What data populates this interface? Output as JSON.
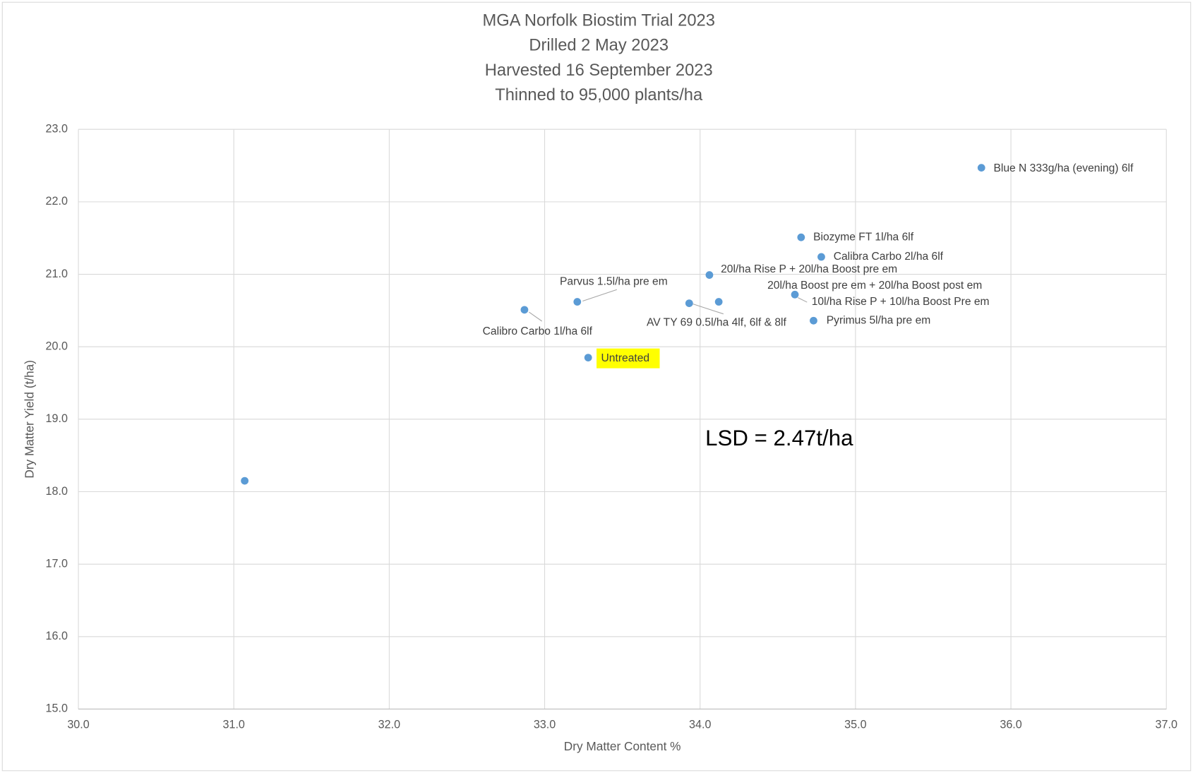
{
  "chart_data": {
    "type": "scatter",
    "title": [
      "MGA Norfolk Biostim Trial 2023",
      "Drilled 2 May 2023",
      "Harvested 16 September 2023",
      "Thinned to 95,000 plants/ha"
    ],
    "x_label": "Dry Matter Content %",
    "y_label": "Dry Matter Yield (t/ha)",
    "annotation": "LSD = 2.47t/ha",
    "color": "#5b9bd5",
    "grid": true,
    "highlight": {
      "index": 10,
      "color": "#ffff00"
    },
    "labels": [
      "Blue N 333g/ha (evening) 6lf",
      "Biozyme FT 1l/ha 6lf",
      "Calibra Carbo 2l/ha 6lf",
      "20l/ha Rise P + 20l/ha Boost pre em",
      "20l/ha Boost pre em + 20l/ha Boost post em",
      "10l/ha Rise P + 10l/ha Boost Pre em",
      "Pyrimus 5l/ha pre em",
      "AV TY 69 0.5l/ha 4lf, 6lf & 8lf",
      "Parvus 1.5l/ha pre em",
      "Calibro Carbo 1l/ha 6lf",
      "Untreated",
      null
    ],
    "x": [
      35.81,
      34.65,
      34.78,
      34.06,
      34.12,
      34.61,
      34.73,
      33.93,
      33.21,
      32.87,
      33.28,
      31.07
    ],
    "values": [
      22.47,
      21.51,
      21.24,
      20.99,
      20.62,
      20.72,
      20.36,
      20.6,
      20.62,
      20.51,
      19.85,
      18.15
    ],
    "xlim": [
      30,
      37
    ],
    "xticks": [
      {
        "value": 30,
        "label": "30.0"
      },
      {
        "value": 31,
        "label": "31.0"
      },
      {
        "value": 32,
        "label": "32.0"
      },
      {
        "value": 33,
        "label": "33.0"
      },
      {
        "value": 34,
        "label": "34.0"
      },
      {
        "value": 35,
        "label": "35.0"
      },
      {
        "value": 36,
        "label": "36.0"
      },
      {
        "value": 37,
        "label": "37.0"
      }
    ],
    "ylim": [
      15,
      23
    ],
    "yticks": [
      {
        "value": 15,
        "label": "15.0"
      },
      {
        "value": 16,
        "label": "16.0"
      },
      {
        "value": 17,
        "label": "17.0"
      },
      {
        "value": 18,
        "label": "18.0"
      },
      {
        "value": 19,
        "label": "19.0"
      },
      {
        "value": 20,
        "label": "20.0"
      },
      {
        "value": 21,
        "label": "21.0"
      },
      {
        "value": 22,
        "label": "22.0"
      },
      {
        "value": 23,
        "label": "23.0"
      }
    ]
  }
}
